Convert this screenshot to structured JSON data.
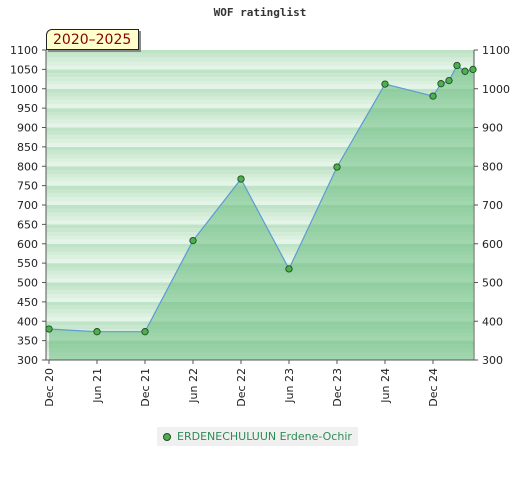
{
  "chart_data": {
    "type": "area",
    "title": "WOF ratinglist",
    "badge": "2020–2025",
    "ylim": [
      300,
      1100
    ],
    "yticks": [
      300,
      350,
      400,
      450,
      500,
      550,
      600,
      650,
      700,
      750,
      800,
      850,
      900,
      950,
      1000,
      1050,
      1100
    ],
    "yticks_right": [
      300,
      400,
      500,
      600,
      700,
      800,
      900,
      1000,
      1100
    ],
    "xlim": [
      "2020-12",
      "2025-07"
    ],
    "xticks": [
      {
        "label": "Dec 20",
        "date": "2020-12"
      },
      {
        "label": "Jun 21",
        "date": "2021-06"
      },
      {
        "label": "Dec 21",
        "date": "2021-12"
      },
      {
        "label": "Jun 22",
        "date": "2022-06"
      },
      {
        "label": "Dec 22",
        "date": "2022-12"
      },
      {
        "label": "Jun 23",
        "date": "2023-06"
      },
      {
        "label": "Dec 23",
        "date": "2023-12"
      },
      {
        "label": "Jun 24",
        "date": "2024-06"
      },
      {
        "label": "Dec 24",
        "date": "2024-12"
      }
    ],
    "series": [
      {
        "name": "ERDENECHULUUN Erdene-Ochir",
        "points": [
          {
            "x": "2020-12",
            "y": 380
          },
          {
            "x": "2021-06",
            "y": 373
          },
          {
            "x": "2021-12",
            "y": 373
          },
          {
            "x": "2022-06",
            "y": 608
          },
          {
            "x": "2022-12",
            "y": 767
          },
          {
            "x": "2023-06",
            "y": 535
          },
          {
            "x": "2023-12",
            "y": 798
          },
          {
            "x": "2024-06",
            "y": 1012
          },
          {
            "x": "2024-12",
            "y": 981
          },
          {
            "x": "2025-01",
            "y": 1013
          },
          {
            "x": "2025-02",
            "y": 1021
          },
          {
            "x": "2025-03",
            "y": 1060
          },
          {
            "x": "2025-04",
            "y": 1045
          },
          {
            "x": "2025-05",
            "y": 1050
          }
        ]
      }
    ],
    "colors": {
      "band_light": "#ecf7ee",
      "band_mid": "#bfe3c6",
      "area_fill": "#69bd7f",
      "line": "#5b9bd5",
      "marker_fill": "#4caf50",
      "marker_stroke": "#1e4d1e"
    },
    "grid": true,
    "legend_position": "bottom"
  }
}
